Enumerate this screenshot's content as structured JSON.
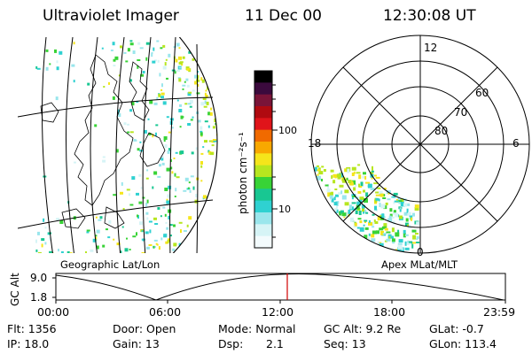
{
  "header": {
    "instrument": "Ultraviolet Imager",
    "date": "11 Dec 00",
    "time": "12:30:08 UT"
  },
  "colorbar": {
    "unit_label": "photon cm⁻²s⁻¹",
    "tick_labels": [
      "100",
      "10"
    ],
    "colors": [
      "#000000",
      "#3b0a3d",
      "#7a1438",
      "#b00a10",
      "#e0141a",
      "#f06a00",
      "#f8a800",
      "#f5e51b",
      "#b7e61f",
      "#38d336",
      "#18c792",
      "#2fd1d1",
      "#9ae6ec",
      "#d6f4f6",
      "#f3fbfd"
    ]
  },
  "left_panel": {
    "caption": "Geographic Lat/Lon"
  },
  "right_panel": {
    "caption": "Apex MLat/MLT",
    "mlt_labels": [
      "12",
      "18",
      "6",
      "0"
    ],
    "lat_labels": [
      "60",
      "70",
      "80"
    ]
  },
  "timeline": {
    "y_label": "GC Alt",
    "y_ticks": [
      "9.0",
      "1.8"
    ],
    "x_ticks": [
      "00:00",
      "06:00",
      "12:00",
      "18:00",
      "23:59"
    ],
    "current_marker_color": "#d00000"
  },
  "status": {
    "flt": "Flt: 1356",
    "ip": "IP: 18.0",
    "door": "Door: Open",
    "gain": "Gain: 13",
    "mode": "Mode: Normal",
    "dsp_label": "Dsp:",
    "dsp_value": "2.1",
    "gcalt": "GC Alt: 9.2 Re",
    "seq": "Seq: 13",
    "glat": "GLat:  -0.7",
    "glon": "GLon: 113.4"
  }
}
